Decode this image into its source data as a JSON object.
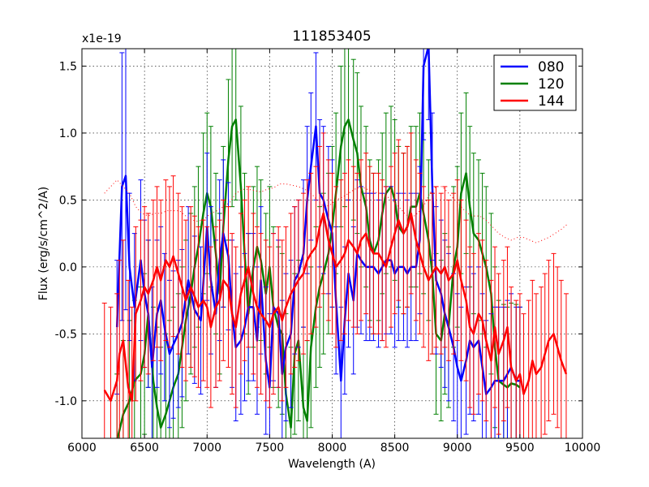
{
  "chart_data": {
    "type": "line",
    "title": "111853405",
    "xlabel": "Wavelength (A)",
    "ylabel": "Flux (erg/s/cm^2/A)",
    "scale_label": "x1e-19",
    "scale": 1e-19,
    "xlim": [
      6000,
      10000
    ],
    "ylim": [
      -1.28,
      1.63
    ],
    "xticks": [
      6000,
      6500,
      7000,
      7500,
      8000,
      8500,
      9000,
      9500,
      10000
    ],
    "xtick_labels": [
      "6000",
      "6500",
      "7000",
      "7500",
      "8000",
      "8500",
      "9000",
      "9500",
      "10000"
    ],
    "yticks": [
      -1.0,
      -0.5,
      0.0,
      0.5,
      1.0,
      1.5
    ],
    "ytick_labels": [
      "-1.0",
      "-0.5",
      "0.0",
      "0.5",
      "1.0",
      "1.5"
    ],
    "grid": true,
    "legend_position": "top-right",
    "series": [
      {
        "name": "080",
        "color": "#0000ff",
        "x": [
          6280,
          6320,
          6350,
          6380,
          6420,
          6470,
          6500,
          6530,
          6560,
          6600,
          6630,
          6660,
          6700,
          6730,
          6770,
          6800,
          6850,
          6900,
          6950,
          7000,
          7030,
          7070,
          7100,
          7130,
          7170,
          7200,
          7230,
          7270,
          7300,
          7330,
          7370,
          7400,
          7430,
          7470,
          7500,
          7530,
          7570,
          7600,
          7630,
          7670,
          7700,
          7730,
          7770,
          7800,
          7830,
          7870,
          7900,
          7930,
          7970,
          8000,
          8030,
          8070,
          8100,
          8130,
          8170,
          8200,
          8230,
          8270,
          8300,
          8330,
          8370,
          8400,
          8430,
          8470,
          8500,
          8530,
          8570,
          8600,
          8630,
          8670,
          8700,
          8730,
          8770,
          8800,
          8830,
          8870,
          8900,
          8930,
          8970,
          9000,
          9030,
          9070,
          9100,
          9130,
          9170,
          9200,
          9230,
          9270,
          9300,
          9330,
          9370,
          9400,
          9430,
          9470,
          9500
        ],
        "y": [
          -0.45,
          0.6,
          0.68,
          0.0,
          -0.3,
          0.05,
          -0.2,
          -0.35,
          -0.75,
          -0.35,
          -0.25,
          -0.45,
          -0.65,
          -0.58,
          -0.5,
          -0.42,
          -0.1,
          -0.32,
          -0.4,
          0.3,
          -0.1,
          -0.35,
          0.05,
          0.25,
          0.08,
          -0.35,
          -0.6,
          -0.55,
          -0.45,
          -0.3,
          -0.3,
          -0.55,
          -0.1,
          -0.7,
          -0.9,
          -0.3,
          -0.35,
          -0.8,
          -0.6,
          -0.5,
          -0.1,
          -0.05,
          0.1,
          0.5,
          0.75,
          1.05,
          0.55,
          0.5,
          0.35,
          0.25,
          -0.25,
          -0.85,
          -0.4,
          -0.05,
          -0.25,
          0.1,
          0.05,
          0.0,
          0.0,
          0.0,
          -0.05,
          0.0,
          0.05,
          0.05,
          -0.05,
          0.0,
          0.0,
          -0.05,
          0.0,
          0.0,
          0.2,
          1.5,
          1.65,
          0.6,
          -0.1,
          -0.2,
          -0.35,
          -0.45,
          -0.6,
          -0.75,
          -0.85,
          -0.7,
          -0.55,
          -0.6,
          -0.55,
          -0.75,
          -0.95,
          -0.9,
          -0.85,
          -0.85,
          -0.85,
          -0.8,
          -0.75,
          -0.85,
          -0.85
        ],
        "err": [
          0.5,
          1.0,
          1.0,
          0.55,
          0.55,
          0.6,
          0.55,
          0.55,
          0.6,
          0.55,
          0.55,
          0.55,
          0.55,
          0.55,
          0.55,
          0.55,
          0.55,
          0.55,
          0.55,
          0.55,
          0.55,
          0.55,
          0.6,
          0.55,
          0.55,
          0.55,
          0.55,
          0.55,
          0.55,
          0.55,
          0.55,
          0.55,
          0.55,
          0.55,
          0.55,
          0.55,
          0.55,
          0.55,
          0.55,
          0.55,
          0.55,
          0.55,
          0.55,
          0.55,
          0.55,
          0.55,
          0.55,
          0.55,
          0.55,
          0.55,
          0.55,
          0.55,
          0.55,
          0.55,
          0.55,
          0.55,
          0.55,
          0.55,
          0.55,
          0.55,
          0.55,
          0.55,
          0.55,
          0.55,
          0.55,
          0.55,
          0.55,
          0.55,
          0.55,
          0.55,
          0.55,
          0.55,
          0.55,
          0.55,
          0.55,
          0.55,
          0.55,
          0.55,
          0.55,
          0.55,
          0.55,
          0.55,
          0.55,
          0.55,
          0.55,
          0.55,
          0.55,
          0.55,
          0.55,
          0.55,
          0.55,
          0.55,
          0.55,
          0.55,
          0.55
        ]
      },
      {
        "name": "120",
        "color": "#008000",
        "x": [
          6280,
          6330,
          6380,
          6420,
          6470,
          6500,
          6530,
          6570,
          6600,
          6630,
          6670,
          6700,
          6730,
          6770,
          6800,
          6830,
          6870,
          6900,
          6930,
          6970,
          7000,
          7030,
          7070,
          7100,
          7130,
          7170,
          7200,
          7230,
          7270,
          7300,
          7330,
          7370,
          7400,
          7430,
          7470,
          7500,
          7530,
          7570,
          7600,
          7630,
          7670,
          7700,
          7730,
          7770,
          7800,
          7830,
          7870,
          7900,
          7930,
          7970,
          8000,
          8030,
          8070,
          8100,
          8130,
          8170,
          8200,
          8230,
          8270,
          8300,
          8330,
          8370,
          8400,
          8430,
          8470,
          8500,
          8530,
          8570,
          8600,
          8630,
          8670,
          8700,
          8730,
          8770,
          8800,
          8830,
          8870,
          8900,
          8930,
          8970,
          9000,
          9030,
          9070,
          9100,
          9130,
          9170,
          9200,
          9230,
          9270,
          9300,
          9330,
          9370,
          9400,
          9430,
          9470,
          9500
        ],
        "y": [
          -1.3,
          -1.1,
          -1.0,
          -0.85,
          -0.8,
          -0.65,
          -0.35,
          -0.85,
          -1.05,
          -1.2,
          -1.1,
          -1.0,
          -0.9,
          -0.8,
          -0.6,
          -0.4,
          -0.2,
          0.0,
          0.15,
          0.4,
          0.55,
          0.45,
          0.1,
          -0.2,
          0.3,
          0.8,
          1.05,
          1.1,
          0.6,
          0.1,
          -0.35,
          0.0,
          0.15,
          0.05,
          -0.2,
          0.0,
          -0.3,
          -0.45,
          -0.5,
          -0.95,
          -1.2,
          -0.65,
          -0.55,
          -1.05,
          -1.15,
          -0.6,
          -0.3,
          -0.15,
          -0.05,
          0.1,
          0.3,
          0.55,
          0.9,
          1.05,
          1.1,
          0.95,
          0.85,
          0.6,
          0.45,
          0.2,
          0.1,
          0.2,
          0.4,
          0.55,
          0.6,
          0.5,
          0.3,
          0.25,
          0.3,
          0.45,
          0.45,
          0.55,
          0.4,
          0.2,
          -0.05,
          -0.5,
          -0.55,
          -0.35,
          -0.45,
          0.0,
          0.15,
          0.55,
          0.7,
          0.45,
          0.25,
          0.2,
          0.1,
          0.0,
          -0.2,
          -0.6,
          -0.85,
          -0.88,
          -0.9,
          -0.87,
          -0.88,
          -0.9
        ],
        "err": [
          0.5,
          0.55,
          0.6,
          0.6,
          0.65,
          0.6,
          0.55,
          0.55,
          0.6,
          0.6,
          0.6,
          0.6,
          0.6,
          0.6,
          0.6,
          0.6,
          0.6,
          0.6,
          0.6,
          0.6,
          0.6,
          0.6,
          0.6,
          0.6,
          0.6,
          0.6,
          0.6,
          0.6,
          0.6,
          0.6,
          0.6,
          0.6,
          0.6,
          0.6,
          0.6,
          0.6,
          0.6,
          0.6,
          0.6,
          0.6,
          0.6,
          0.6,
          0.6,
          0.6,
          0.6,
          0.6,
          0.6,
          0.6,
          0.6,
          0.6,
          0.6,
          0.6,
          0.6,
          0.6,
          0.6,
          0.6,
          0.6,
          0.6,
          0.6,
          0.6,
          0.6,
          0.6,
          0.6,
          0.6,
          0.6,
          0.6,
          0.6,
          0.6,
          0.6,
          0.6,
          0.6,
          0.6,
          0.6,
          0.6,
          0.6,
          0.6,
          0.6,
          0.6,
          0.6,
          0.6,
          0.6,
          0.6,
          0.6,
          0.6,
          0.6,
          0.6,
          0.6,
          0.6,
          0.6,
          0.6,
          0.6,
          0.6,
          0.6,
          0.6,
          0.6,
          0.6
        ]
      },
      {
        "name": "144",
        "color": "#ff0000",
        "x": [
          6180,
          6230,
          6280,
          6300,
          6330,
          6370,
          6400,
          6430,
          6470,
          6500,
          6530,
          6570,
          6600,
          6630,
          6670,
          6700,
          6730,
          6770,
          6800,
          6830,
          6870,
          6900,
          6930,
          6970,
          7000,
          7030,
          7070,
          7100,
          7130,
          7170,
          7200,
          7230,
          7270,
          7300,
          7330,
          7370,
          7400,
          7430,
          7470,
          7500,
          7530,
          7570,
          7600,
          7630,
          7670,
          7700,
          7730,
          7770,
          7800,
          7830,
          7870,
          7900,
          7930,
          7970,
          8000,
          8030,
          8070,
          8100,
          8130,
          8170,
          8200,
          8230,
          8270,
          8300,
          8330,
          8370,
          8400,
          8430,
          8470,
          8500,
          8530,
          8570,
          8600,
          8630,
          8670,
          8700,
          8730,
          8770,
          8800,
          8830,
          8870,
          8900,
          8930,
          8970,
          9000,
          9030,
          9070,
          9100,
          9130,
          9170,
          9200,
          9230,
          9270,
          9300,
          9330,
          9370,
          9400,
          9430,
          9470,
          9500,
          9530,
          9570,
          9600,
          9630,
          9670,
          9700,
          9730,
          9770,
          9800,
          9830,
          9870
        ],
        "y": [
          -0.92,
          -1.0,
          -0.85,
          -0.65,
          -0.55,
          -0.9,
          -1.0,
          -0.35,
          -0.25,
          -0.15,
          -0.2,
          -0.1,
          0.0,
          -0.1,
          0.05,
          0.0,
          0.08,
          -0.05,
          -0.15,
          -0.25,
          -0.15,
          -0.22,
          -0.3,
          -0.25,
          -0.3,
          -0.45,
          -0.3,
          -0.25,
          -0.1,
          -0.15,
          -0.35,
          -0.45,
          -0.2,
          -0.1,
          0.0,
          -0.2,
          -0.3,
          -0.35,
          -0.4,
          -0.45,
          -0.35,
          -0.3,
          -0.4,
          -0.3,
          -0.2,
          -0.15,
          -0.1,
          -0.05,
          0.05,
          0.1,
          0.15,
          0.3,
          0.4,
          0.2,
          0.1,
          0.0,
          0.05,
          0.1,
          0.2,
          0.15,
          0.1,
          0.2,
          0.25,
          0.15,
          0.1,
          0.1,
          0.05,
          0.0,
          0.15,
          0.25,
          0.35,
          0.25,
          0.3,
          0.4,
          0.2,
          0.1,
          0.0,
          -0.1,
          -0.05,
          0.0,
          -0.05,
          0.0,
          -0.1,
          -0.05,
          0.05,
          -0.1,
          -0.25,
          -0.45,
          -0.5,
          -0.35,
          -0.4,
          -0.55,
          -0.7,
          -0.45,
          -0.65,
          -0.55,
          -0.45,
          -0.75,
          -0.85,
          -0.8,
          -0.95,
          -0.85,
          -0.7,
          -0.8,
          -0.75,
          -0.65,
          -0.55,
          -0.5,
          -0.6,
          -0.7,
          -0.8
        ],
        "err": [
          0.65,
          0.7,
          0.65,
          0.7,
          0.75,
          0.8,
          0.7,
          0.65,
          0.6,
          0.6,
          0.6,
          0.6,
          0.6,
          0.6,
          0.6,
          0.6,
          0.6,
          0.6,
          0.6,
          0.6,
          0.6,
          0.6,
          0.6,
          0.6,
          0.6,
          0.6,
          0.6,
          0.6,
          0.6,
          0.6,
          0.6,
          0.6,
          0.6,
          0.6,
          0.6,
          0.6,
          0.6,
          0.6,
          0.6,
          0.6,
          0.6,
          0.6,
          0.6,
          0.6,
          0.6,
          0.6,
          0.6,
          0.6,
          0.6,
          0.6,
          0.6,
          0.6,
          0.6,
          0.6,
          0.6,
          0.6,
          0.6,
          0.6,
          0.6,
          0.6,
          0.6,
          0.6,
          0.6,
          0.6,
          0.6,
          0.6,
          0.6,
          0.6,
          0.6,
          0.6,
          0.6,
          0.6,
          0.6,
          0.6,
          0.6,
          0.6,
          0.6,
          0.6,
          0.6,
          0.6,
          0.6,
          0.6,
          0.6,
          0.6,
          0.6,
          0.6,
          0.6,
          0.6,
          0.6,
          0.6,
          0.6,
          0.6,
          0.6,
          0.6,
          0.6,
          0.6,
          0.6,
          0.6,
          0.6,
          0.6,
          0.6,
          0.6,
          0.6,
          0.6,
          0.6,
          0.6,
          0.6,
          0.6,
          0.6,
          0.6,
          0.6
        ],
        "model_x": [
          6180,
          6230,
          6280,
          6330,
          6380,
          6430,
          6480,
          6530,
          6580,
          6630,
          6680,
          6730,
          6780,
          6830,
          6880,
          6930,
          6980,
          7030,
          7080,
          7130,
          7180,
          7230,
          7280,
          7330,
          7380,
          7430,
          7480,
          7530,
          7580,
          7630,
          7680,
          7730,
          7780,
          7830,
          7880,
          7930,
          7980,
          8030,
          8080,
          8130,
          8180,
          8230,
          8280,
          8330,
          8380,
          8430,
          8480,
          8530,
          8580,
          8630,
          8680,
          8730,
          8780,
          8830,
          8880,
          8930,
          8980,
          9030,
          9080,
          9130,
          9180,
          9230,
          9280,
          9330,
          9380,
          9430,
          9480,
          9530,
          9580,
          9630,
          9680,
          9730,
          9780,
          9830,
          9880
        ],
        "model_y": [
          0.55,
          0.6,
          0.65,
          0.6,
          0.55,
          0.45,
          0.4,
          0.38,
          0.4,
          0.4,
          0.42,
          0.42,
          0.42,
          0.38,
          0.35,
          0.34,
          0.36,
          0.4,
          0.42,
          0.45,
          0.48,
          0.55,
          0.58,
          0.58,
          0.57,
          0.56,
          0.58,
          0.59,
          0.62,
          0.62,
          0.61,
          0.6,
          0.58,
          0.55,
          0.5,
          0.45,
          0.46,
          0.5,
          0.52,
          0.55,
          0.58,
          0.6,
          0.58,
          0.56,
          0.55,
          0.53,
          0.5,
          0.45,
          0.4,
          0.36,
          0.4,
          0.45,
          0.55,
          0.6,
          0.6,
          0.55,
          0.5,
          0.45,
          0.4,
          0.38,
          0.38,
          0.35,
          0.3,
          0.25,
          0.22,
          0.2,
          0.22,
          0.22,
          0.2,
          0.18,
          0.2,
          0.22,
          0.25,
          0.28,
          0.32
        ]
      }
    ]
  }
}
